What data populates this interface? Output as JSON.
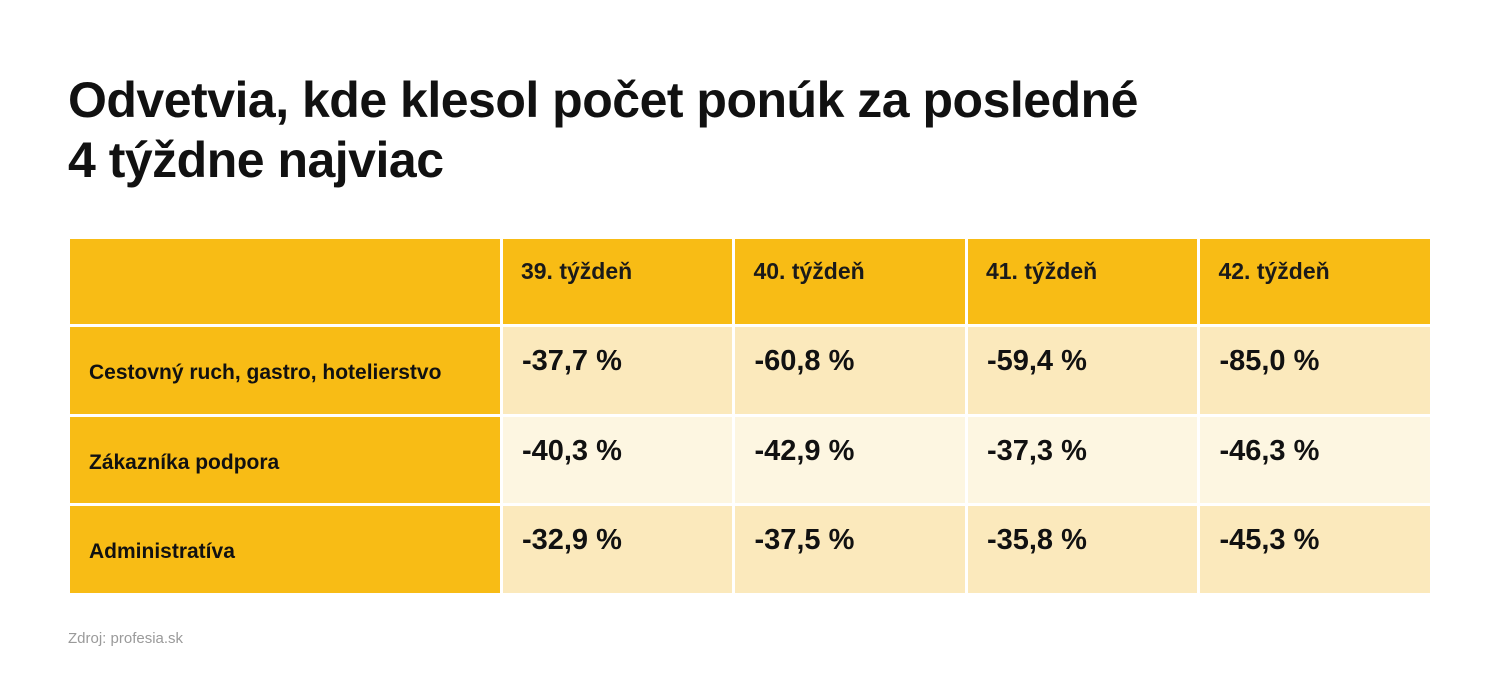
{
  "chart_data": {
    "type": "table",
    "title_lines": [
      "Odvetvia, kde klesol počet ponúk za posledné",
      "4 týždne najviac"
    ],
    "columns": [
      "",
      "39. týždeň",
      "40. týždeň",
      "41. týždeň",
      "42. týždeň"
    ],
    "rows": [
      {
        "label": "Cestovný ruch, gastro, hotelierstvo",
        "values": [
          "-37,7 %",
          "-60,8 %",
          "-59,4 %",
          "-85,0 %"
        ]
      },
      {
        "label": "Zákazníka podpora",
        "values": [
          "-40,3 %",
          "-42,9 %",
          "-37,3 %",
          "-46,3 %"
        ]
      },
      {
        "label": "Administratíva",
        "values": [
          "-32,9 %",
          "-37,5 %",
          "-35,8 %",
          "-45,3 %"
        ]
      }
    ],
    "series": [
      {
        "name": "Cestovný ruch, gastro, hotelierstvo",
        "values": [
          -37.7,
          -60.8,
          -59.4,
          -85.0
        ]
      },
      {
        "name": "Zákazníka podpora",
        "values": [
          -40.3,
          -42.9,
          -37.3,
          -46.3
        ]
      },
      {
        "name": "Administratíva",
        "values": [
          -32.9,
          -37.5,
          -35.8,
          -45.3
        ]
      }
    ],
    "source": "Zdroj: profesia.sk"
  },
  "colors": {
    "header_bg": "#F8BC15",
    "row_shaded": "#FBE9BC",
    "row_light": "#FDF6E1",
    "source_text": "#9a9a9a"
  }
}
